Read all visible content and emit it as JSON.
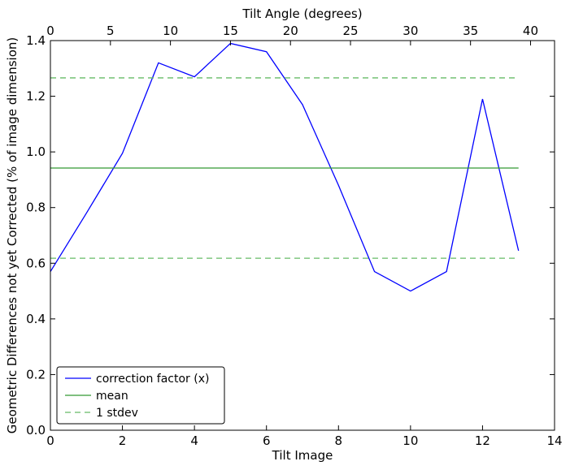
{
  "chart_data": {
    "type": "line",
    "xlabel": "Tilt Image",
    "ylabel": "Geometric Differences not yet Corrected (% of image dimension)",
    "top_xlabel": "Tilt Angle (degrees)",
    "xlim": [
      0,
      14
    ],
    "ylim": [
      0,
      1.4
    ],
    "top_xlim": [
      0,
      42
    ],
    "x_ticks": [
      0,
      2,
      4,
      6,
      8,
      10,
      12,
      14
    ],
    "y_ticks": [
      0.0,
      0.2,
      0.4,
      0.6,
      0.8,
      1.0,
      1.2,
      1.4
    ],
    "y_tick_labels": [
      "0.0",
      "0.2",
      "0.4",
      "0.6",
      "0.8",
      "1.0",
      "1.2",
      "1.4"
    ],
    "top_x_ticks": [
      0,
      5,
      10,
      15,
      20,
      25,
      30,
      35,
      40
    ],
    "grid": false,
    "legend_position": "bottom-left",
    "series": [
      {
        "name": "correction factor (x)",
        "color": "#0000ff",
        "style": "solid",
        "x": [
          0,
          1,
          2,
          3,
          4,
          5,
          6,
          7,
          8,
          9,
          10,
          11,
          12,
          13
        ],
        "y": [
          0.57,
          0.78,
          0.995,
          1.32,
          1.27,
          1.39,
          1.36,
          1.17,
          0.88,
          0.57,
          0.5,
          0.57,
          1.19,
          0.645
        ]
      },
      {
        "name": "mean",
        "color": "#339933",
        "style": "solid",
        "x": [
          0,
          13
        ],
        "y": [
          0.942,
          0.942
        ]
      },
      {
        "name": "1 stdev",
        "color": "#66bb66",
        "style": "dashed",
        "x": [
          0,
          13
        ],
        "y": [
          1.266,
          1.266
        ]
      },
      {
        "name": "",
        "color": "#66bb66",
        "style": "dashed",
        "x": [
          0,
          13
        ],
        "y": [
          0.618,
          0.618
        ]
      }
    ],
    "legend": [
      "correction factor (x)",
      "mean",
      "1 stdev"
    ]
  }
}
